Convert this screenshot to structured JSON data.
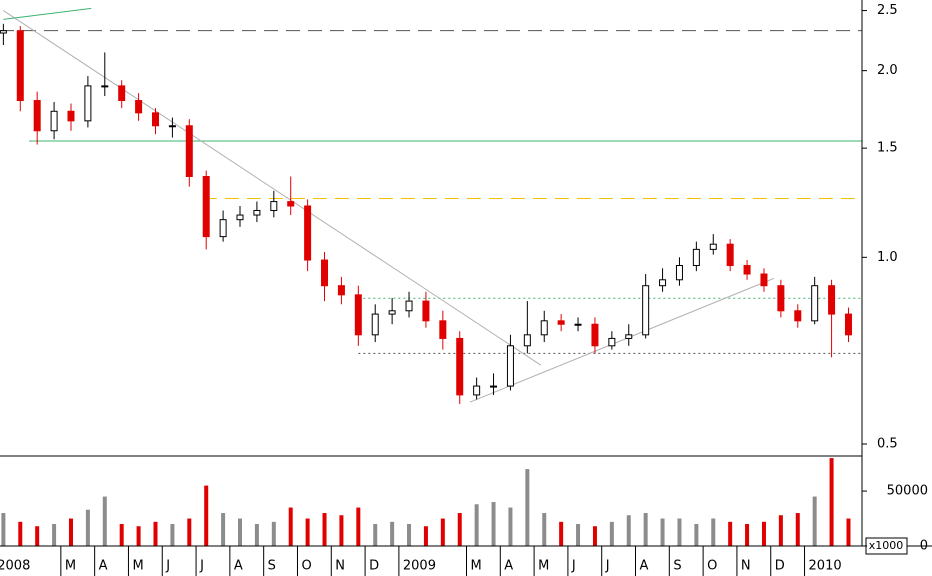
{
  "chart_data": {
    "type": "candlestick",
    "log_scale": true,
    "xlim": [
      0.2,
      25.7
    ],
    "ylim": [
      0.48,
      2.6
    ],
    "yticks": [
      0.5,
      {
        "value": 1,
        "label": "1.0"
      },
      1.5,
      {
        "value": 2,
        "label": "2.0"
      },
      2.5
    ],
    "xticks": [
      {
        "value": 0,
        "label": "2008"
      },
      {
        "value": 2,
        "label": "M"
      },
      {
        "value": 3,
        "label": "A"
      },
      {
        "value": 4,
        "label": "M"
      },
      {
        "value": 5,
        "label": "J"
      },
      {
        "value": 6,
        "label": "J"
      },
      {
        "value": 7,
        "label": "A"
      },
      {
        "value": 8,
        "label": "S"
      },
      {
        "value": 9,
        "label": "O"
      },
      {
        "value": 10,
        "label": "N"
      },
      {
        "value": 11,
        "label": "D"
      },
      {
        "value": 12,
        "label": "2009"
      },
      {
        "value": 14,
        "label": "M"
      },
      {
        "value": 15,
        "label": "A"
      },
      {
        "value": 16,
        "label": "M"
      },
      {
        "value": 17,
        "label": "J"
      },
      {
        "value": 18,
        "label": "J"
      },
      {
        "value": 19,
        "label": "A"
      },
      {
        "value": 20,
        "label": "S"
      },
      {
        "value": 21,
        "label": "O"
      },
      {
        "value": 22,
        "label": "N"
      },
      {
        "value": 23,
        "label": "D"
      },
      {
        "value": 24,
        "label": "2010"
      }
    ],
    "up_color": "#000000",
    "down_color": "#e00000",
    "volume_up_color": "#8c8c8c",
    "x": [
      0.3,
      0.8,
      1.3,
      1.8,
      2.3,
      2.8,
      3.3,
      3.8,
      4.3,
      4.8,
      5.3,
      5.8,
      6.3,
      6.8,
      7.3,
      7.8,
      8.3,
      8.8,
      9.3,
      9.8,
      10.3,
      10.8,
      11.3,
      11.8,
      12.3,
      12.8,
      13.3,
      13.8,
      14.3,
      14.8,
      15.3,
      15.8,
      16.3,
      16.8,
      17.3,
      17.8,
      18.3,
      18.8,
      19.3,
      19.8,
      20.3,
      20.8,
      21.3,
      21.8,
      22.3,
      22.8,
      23.3,
      23.8,
      24.3,
      24.8,
      25.3
    ],
    "open": [
      2.3,
      2.32,
      1.79,
      1.6,
      1.72,
      1.66,
      1.89,
      1.89,
      1.79,
      1.71,
      1.63,
      1.63,
      1.35,
      1.08,
      1.15,
      1.17,
      1.19,
      1.23,
      1.21,
      0.99,
      0.9,
      0.87,
      0.75,
      0.81,
      0.82,
      0.85,
      0.79,
      0.74,
      0.6,
      0.62,
      0.62,
      0.72,
      0.75,
      0.79,
      0.78,
      0.78,
      0.72,
      0.74,
      0.75,
      0.9,
      0.92,
      0.97,
      1.03,
      1.05,
      0.97,
      0.94,
      0.9,
      0.82,
      0.79,
      0.9,
      0.81
    ],
    "high": [
      2.38,
      2.36,
      1.85,
      1.78,
      1.77,
      1.96,
      2.14,
      1.93,
      1.84,
      1.74,
      1.68,
      1.67,
      1.38,
      1.19,
      1.21,
      1.23,
      1.28,
      1.35,
      1.24,
      1.02,
      0.93,
      0.9,
      0.84,
      0.86,
      0.88,
      0.88,
      0.82,
      0.76,
      0.64,
      0.65,
      0.75,
      0.85,
      0.82,
      0.81,
      0.8,
      0.8,
      0.76,
      0.78,
      0.94,
      0.96,
      1.0,
      1.06,
      1.09,
      1.07,
      0.99,
      0.96,
      0.92,
      0.84,
      0.93,
      0.92,
      0.83
    ],
    "low": [
      2.2,
      1.72,
      1.52,
      1.55,
      1.6,
      1.62,
      1.82,
      1.74,
      1.66,
      1.58,
      1.56,
      1.3,
      1.03,
      1.06,
      1.12,
      1.14,
      1.16,
      1.17,
      0.95,
      0.85,
      0.84,
      0.72,
      0.73,
      0.78,
      0.8,
      0.77,
      0.71,
      0.58,
      0.59,
      0.6,
      0.61,
      0.7,
      0.73,
      0.76,
      0.76,
      0.7,
      0.71,
      0.72,
      0.74,
      0.88,
      0.9,
      0.95,
      1.01,
      0.95,
      0.92,
      0.88,
      0.8,
      0.77,
      0.78,
      0.69,
      0.73
    ],
    "close": [
      2.32,
      1.79,
      1.6,
      1.72,
      1.66,
      1.89,
      1.89,
      1.79,
      1.71,
      1.63,
      1.63,
      1.35,
      1.08,
      1.15,
      1.17,
      1.19,
      1.23,
      1.21,
      0.99,
      0.9,
      0.87,
      0.75,
      0.81,
      0.82,
      0.85,
      0.79,
      0.74,
      0.6,
      0.62,
      0.62,
      0.72,
      0.75,
      0.79,
      0.78,
      0.78,
      0.72,
      0.74,
      0.75,
      0.9,
      0.92,
      0.97,
      1.03,
      1.05,
      0.97,
      0.94,
      0.9,
      0.82,
      0.79,
      0.9,
      0.81,
      0.75
    ],
    "volume": [
      30000,
      22000,
      18000,
      20000,
      25000,
      33000,
      45000,
      20000,
      18000,
      22000,
      20000,
      25000,
      55000,
      30000,
      25000,
      20000,
      22000,
      35000,
      25000,
      30000,
      28000,
      35000,
      20000,
      22000,
      20000,
      18000,
      25000,
      30000,
      38000,
      40000,
      35000,
      70000,
      30000,
      22000,
      20000,
      18000,
      22000,
      28000,
      30000,
      25000,
      25000,
      20000,
      25000,
      22000,
      20000,
      22000,
      28000,
      30000,
      45000,
      80000,
      25000
    ],
    "volume_ylim": [
      0,
      81000
    ],
    "volume_yticks": [
      0,
      50000
    ],
    "volume_unit_label": "x1000",
    "hlines": [
      {
        "value": 2.32,
        "start": 0.2,
        "color": "#555555",
        "dash": "14,8"
      },
      {
        "value": 1.54,
        "start": 1.06,
        "color": "#3cb371",
        "dash": "none"
      },
      {
        "value": 1.244,
        "start": 6.2,
        "color": "#f2c200",
        "dash": "14,8"
      },
      {
        "value": 0.859,
        "start": 10.8,
        "color": "#3cb371",
        "dash": "2,3"
      },
      {
        "value": 0.7,
        "start": 10.8,
        "color": "#555555",
        "dash": "2,3"
      }
    ],
    "trendlines": [
      {
        "x": [
          0.3,
          16.2
        ],
        "y": [
          2.5,
          0.67
        ],
        "color": "#b0b0b0"
      },
      {
        "x": [
          14.1,
          23.1
        ],
        "y": [
          0.584,
          0.925
        ],
        "color": "#b0b0b0"
      },
      {
        "x": [
          0.3,
          2.9
        ],
        "y": [
          2.42,
          2.52
        ],
        "color": "#3cb371"
      }
    ]
  }
}
